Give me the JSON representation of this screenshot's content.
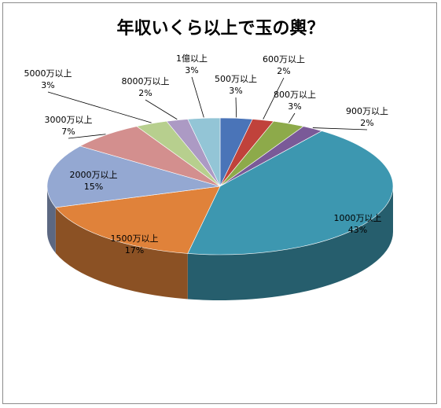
{
  "chart_data": {
    "type": "pie",
    "title": "年収いくら以上で玉の輿？",
    "style": "3d",
    "slices": [
      {
        "label": "500万以上",
        "value": 3,
        "pct_label": "3%",
        "color": "#4a74b8"
      },
      {
        "label": "600万以上",
        "value": 2,
        "pct_label": "2%",
        "color": "#c0423b"
      },
      {
        "label": "800万以上",
        "value": 3,
        "pct_label": "3%",
        "color": "#8daa4a"
      },
      {
        "label": "900万以上",
        "value": 2,
        "pct_label": "2%",
        "color": "#7a5a98"
      },
      {
        "label": "1000万以上",
        "value": 43,
        "pct_label": "43%",
        "color": "#3d97b0"
      },
      {
        "label": "1500万以上",
        "value": 17,
        "pct_label": "17%",
        "color": "#e0823a"
      },
      {
        "label": "2000万以上",
        "value": 15,
        "pct_label": "15%",
        "color": "#94a8d2"
      },
      {
        "label": "3000万以上",
        "value": 7,
        "pct_label": "7%",
        "color": "#d38f8e"
      },
      {
        "label": "5000万以上",
        "value": 3,
        "pct_label": "3%",
        "color": "#b7cf8e"
      },
      {
        "label": "8000万以上",
        "value": 2,
        "pct_label": "2%",
        "color": "#ac9ac4"
      },
      {
        "label": "1億以上",
        "value": 3,
        "pct_label": "3%",
        "color": "#93c5d6"
      }
    ]
  }
}
